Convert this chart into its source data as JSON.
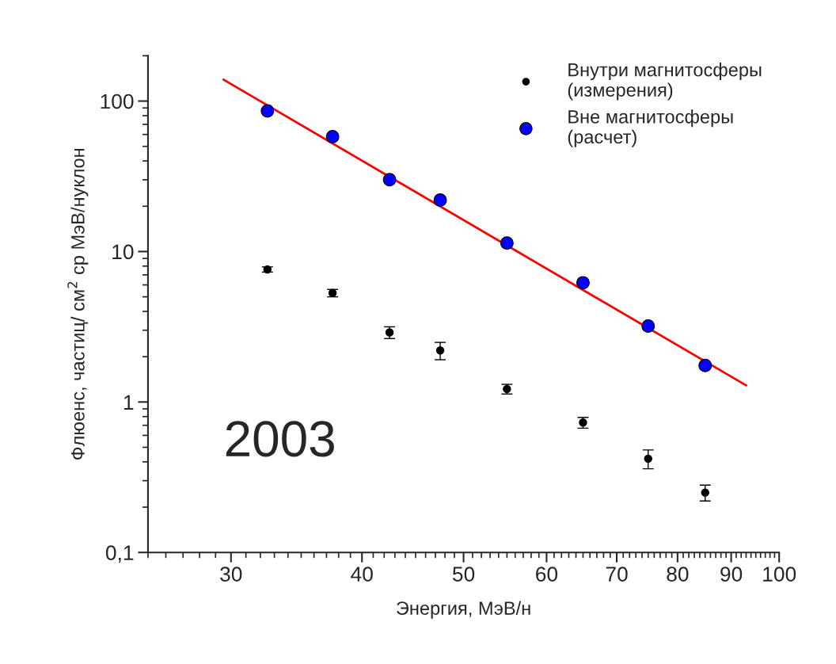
{
  "chart_data": {
    "type": "scatter",
    "xlabel": "Энергия, МэВ/н",
    "ylabel": "Флюенс, частиц/ см$^{2}$ ср МэВ/нуклон",
    "annotations": [
      "2003"
    ],
    "log": "xy",
    "legend": "top right",
    "grid": false,
    "xlim": [
      25,
      100
    ],
    "xticks": [
      {
        "value": 25,
        "label": null
      },
      {
        "value": 26,
        "label": null
      },
      {
        "value": 27,
        "label": null
      },
      {
        "value": 28,
        "label": null
      },
      {
        "value": 29,
        "label": null
      },
      30,
      {
        "value": 31,
        "label": null
      },
      {
        "value": 32,
        "label": null
      },
      {
        "value": 33,
        "label": null
      },
      {
        "value": 34,
        "label": null
      },
      {
        "value": 35,
        "label": null
      },
      {
        "value": 36,
        "label": null
      },
      {
        "value": 37,
        "label": null
      },
      {
        "value": 38,
        "label": null
      },
      {
        "value": 39,
        "label": null
      },
      40,
      {
        "value": 41,
        "label": null
      },
      {
        "value": 42,
        "label": null
      },
      {
        "value": 43,
        "label": null
      },
      {
        "value": 44,
        "label": null
      },
      {
        "value": 45,
        "label": null
      },
      {
        "value": 46,
        "label": null
      },
      {
        "value": 47,
        "label": null
      },
      {
        "value": 48,
        "label": null
      },
      {
        "value": 49,
        "label": null
      },
      50,
      {
        "value": 51,
        "label": null
      },
      {
        "value": 52,
        "label": null
      },
      {
        "value": 53,
        "label": null
      },
      {
        "value": 54,
        "label": null
      },
      {
        "value": 55,
        "label": null
      },
      {
        "value": 56,
        "label": null
      },
      {
        "value": 57,
        "label": null
      },
      {
        "value": 58,
        "label": null
      },
      {
        "value": 59,
        "label": null
      },
      60,
      {
        "value": 61,
        "label": null
      },
      {
        "value": 62,
        "label": null
      },
      {
        "value": 63,
        "label": null
      },
      {
        "value": 64,
        "label": null
      },
      {
        "value": 65,
        "label": null
      },
      {
        "value": 66,
        "label": null
      },
      {
        "value": 67,
        "label": null
      },
      {
        "value": 68,
        "label": null
      },
      {
        "value": 69,
        "label": null
      },
      70,
      {
        "value": 71,
        "label": null
      },
      {
        "value": 72,
        "label": null
      },
      {
        "value": 73,
        "label": null
      },
      {
        "value": 74,
        "label": null
      },
      {
        "value": 75,
        "label": null
      },
      {
        "value": 76,
        "label": null
      },
      {
        "value": 77,
        "label": null
      },
      {
        "value": 78,
        "label": null
      },
      {
        "value": 79,
        "label": null
      },
      80,
      {
        "value": 81,
        "label": null
      },
      {
        "value": 82,
        "label": null
      },
      {
        "value": 83,
        "label": null
      },
      {
        "value": 84,
        "label": null
      },
      {
        "value": 85,
        "label": null
      },
      {
        "value": 86,
        "label": null
      },
      {
        "value": 87,
        "label": null
      },
      {
        "value": 88,
        "label": null
      },
      {
        "value": 89,
        "label": null
      },
      90,
      {
        "value": 91,
        "label": null
      },
      {
        "value": 92,
        "label": null
      },
      {
        "value": 93,
        "label": null
      },
      {
        "value": 94,
        "label": null
      },
      {
        "value": 95,
        "label": null
      },
      {
        "value": 96,
        "label": null
      },
      {
        "value": 97,
        "label": null
      },
      {
        "value": 98,
        "label": null
      },
      {
        "value": 99,
        "label": null
      },
      100
    ],
    "ylim": [
      0.1,
      200
    ],
    "yticks": [
      {
        "value": 0.1,
        "label": "0,1"
      },
      {
        "value": 0.2,
        "label": null
      },
      {
        "value": 0.3,
        "label": null
      },
      {
        "value": 0.4,
        "label": null
      },
      {
        "value": 0.5,
        "label": null
      },
      {
        "value": 0.6,
        "label": null
      },
      {
        "value": 0.7,
        "label": null
      },
      {
        "value": 0.8,
        "label": null
      },
      {
        "value": 0.9,
        "label": null
      },
      1,
      {
        "value": 2,
        "label": null
      },
      {
        "value": 3,
        "label": null
      },
      {
        "value": 4,
        "label": null
      },
      {
        "value": 5,
        "label": null
      },
      {
        "value": 6,
        "label": null
      },
      {
        "value": 7,
        "label": null
      },
      {
        "value": 8,
        "label": null
      },
      {
        "value": 9,
        "label": null
      },
      10,
      {
        "value": 20,
        "label": null
      },
      {
        "value": 30,
        "label": null
      },
      {
        "value": 40,
        "label": null
      },
      {
        "value": 50,
        "label": null
      },
      {
        "value": 60,
        "label": null
      },
      {
        "value": 70,
        "label": null
      },
      {
        "value": 80,
        "label": null
      },
      {
        "value": 90,
        "label": null
      },
      100,
      {
        "value": 200,
        "label": null
      }
    ],
    "series": [
      {
        "name": "Внутри магнитосферы\n(измерения)",
        "color": "#000000",
        "marker": "circle",
        "x": [
          32.5,
          37.5,
          42.5,
          47.5,
          55,
          65,
          75,
          85
        ],
        "values": [
          7.6,
          5.3,
          2.9,
          2.2,
          1.22,
          0.73,
          0.42,
          0.25
        ],
        "errors": [
          0.3,
          0.3,
          0.26,
          0.29,
          0.09,
          0.06,
          0.06,
          0.03
        ]
      },
      {
        "name": "Вне магнитосферы\n(расчет)",
        "color": "#0000ff",
        "marker": "circle",
        "x": [
          32.5,
          37.5,
          42.5,
          47.5,
          55,
          65,
          75,
          85
        ],
        "values": [
          86,
          58,
          30,
          22,
          11.4,
          6.2,
          3.2,
          1.75
        ]
      },
      {
        "type": "line",
        "color": "#ff0000",
        "x": [
          29.5,
          93
        ],
        "values": [
          139,
          1.29
        ]
      }
    ]
  }
}
